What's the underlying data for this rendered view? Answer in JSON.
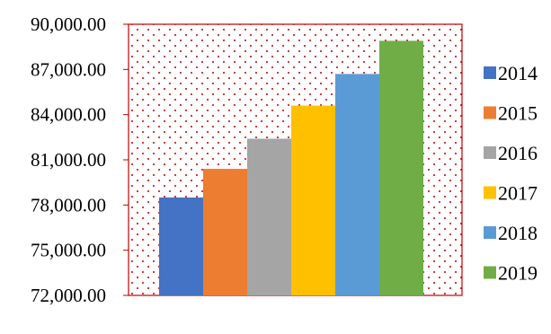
{
  "chart_data": {
    "type": "bar",
    "title": "",
    "xlabel": "",
    "ylabel": "",
    "categories": [
      ""
    ],
    "series": [
      {
        "name": "2014",
        "values": [
          78500
        ],
        "color": "#4472C4"
      },
      {
        "name": "2015",
        "values": [
          80400
        ],
        "color": "#ED7D31"
      },
      {
        "name": "2016",
        "values": [
          82400
        ],
        "color": "#A5A5A5"
      },
      {
        "name": "2017",
        "values": [
          84600
        ],
        "color": "#FFC000"
      },
      {
        "name": "2018",
        "values": [
          86700
        ],
        "color": "#5B9BD5"
      },
      {
        "name": "2019",
        "values": [
          88900
        ],
        "color": "#70AD47"
      }
    ],
    "ylim": [
      72000,
      90000
    ],
    "yticks": [
      72000,
      75000,
      78000,
      81000,
      84000,
      87000,
      90000
    ],
    "ytick_labels": [
      "72,000.00",
      "75,000.00",
      "78,000.00",
      "81,000.00",
      "84,000.00",
      "87,000.00",
      "90,000.00"
    ],
    "legend_position": "right",
    "plot_area_fill": "dotted",
    "plot_area_border_color": "#C00000",
    "grid": false
  }
}
